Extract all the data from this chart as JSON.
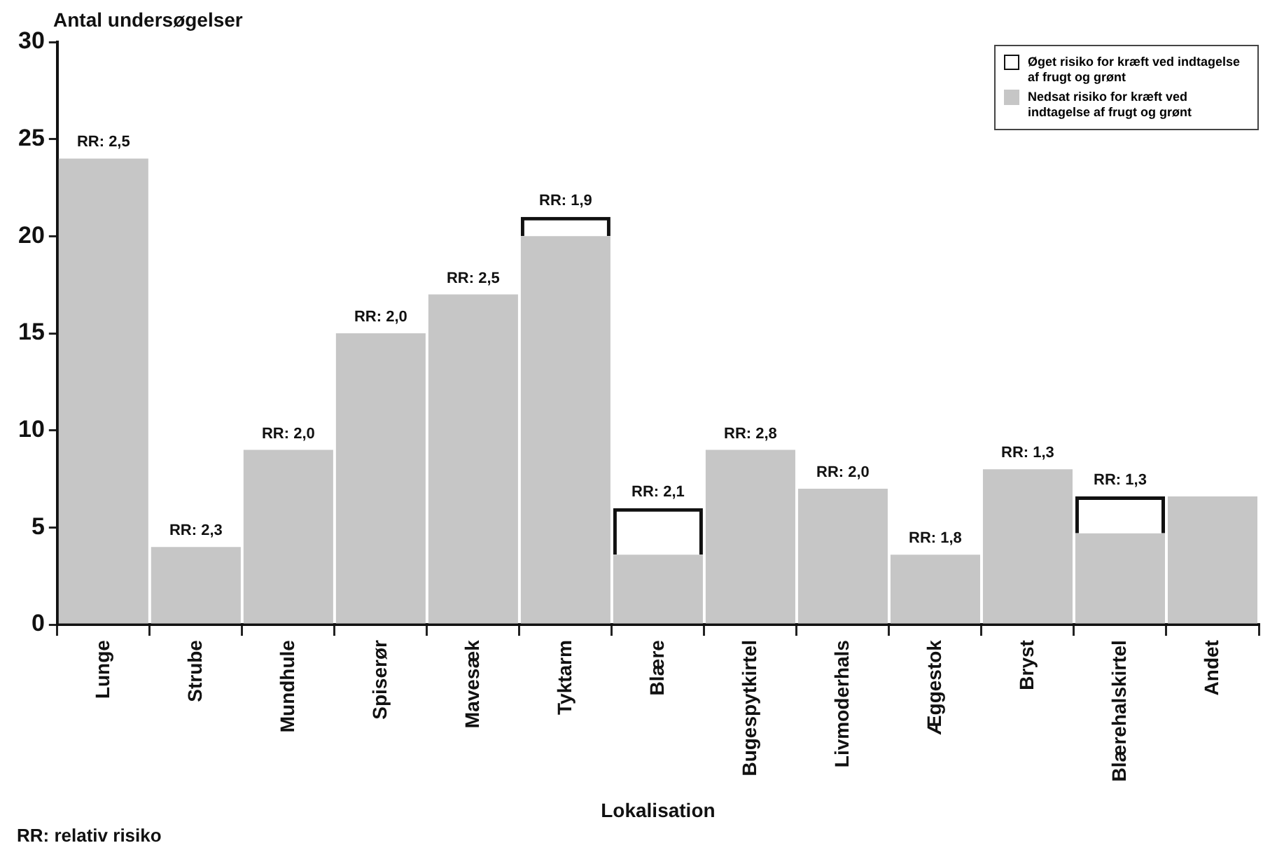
{
  "chart_data": {
    "type": "bar",
    "stacked": true,
    "ylabel": "Antal undersøgelser",
    "xlabel": "Lokalisation",
    "categories": [
      "Lunge",
      "Strube",
      "Mundhule",
      "Spiserør",
      "Mavesæk",
      "Tyktarm",
      "Blære",
      "Bugespytkirtel",
      "Livmoderhals",
      "Æggestok",
      "Bryst",
      "Blærehalskirtel",
      "Andet"
    ],
    "series": [
      {
        "name": "Nedsat risiko for kræft ved indtagelse af frugt og grønt",
        "color": "#c6c6c6",
        "values": [
          24,
          4,
          9,
          15,
          17,
          20,
          3.6,
          9,
          7,
          3.6,
          8,
          4.7,
          6.6
        ]
      },
      {
        "name": "Øget risiko for kræft ved indtagelse af frugt og grønt",
        "color": "#111111",
        "values": [
          null,
          null,
          null,
          null,
          null,
          1,
          2.4,
          null,
          null,
          null,
          null,
          1.9,
          null
        ]
      }
    ],
    "ylim": [
      0,
      30
    ],
    "yticks": [
      0,
      5,
      10,
      15,
      20,
      25,
      30
    ],
    "grid": false,
    "legend": "top right",
    "annotations": [
      {
        "text": "RR: 2,5",
        "x": "Lunge",
        "y": 24
      },
      {
        "text": "RR: 2,3",
        "x": "Strube",
        "y": 4
      },
      {
        "text": "RR: 2,0",
        "x": "Mundhule",
        "y": 9
      },
      {
        "text": "RR: 2,0",
        "x": "Spiserør",
        "y": 15
      },
      {
        "text": "RR: 2,5",
        "x": "Mavesæk",
        "y": 17
      },
      {
        "text": "RR: 1,9",
        "x": "Tyktarm",
        "y": 21
      },
      {
        "text": "RR: 2,1",
        "x": "Blære",
        "y": 6
      },
      {
        "text": "RR: 2,8",
        "x": "Bugespytkirtel",
        "y": 9
      },
      {
        "text": "RR: 2,0",
        "x": "Livmoderhals",
        "y": 7
      },
      {
        "text": "RR: 1,8",
        "x": "Æggestok",
        "y": 3.6
      },
      {
        "text": "RR: 1,3",
        "x": "Bryst",
        "y": 8
      },
      {
        "text": "RR: 1,3",
        "x": "Blærehalskirtel",
        "y": 6.6
      },
      "RR: relativ risiko"
    ]
  }
}
